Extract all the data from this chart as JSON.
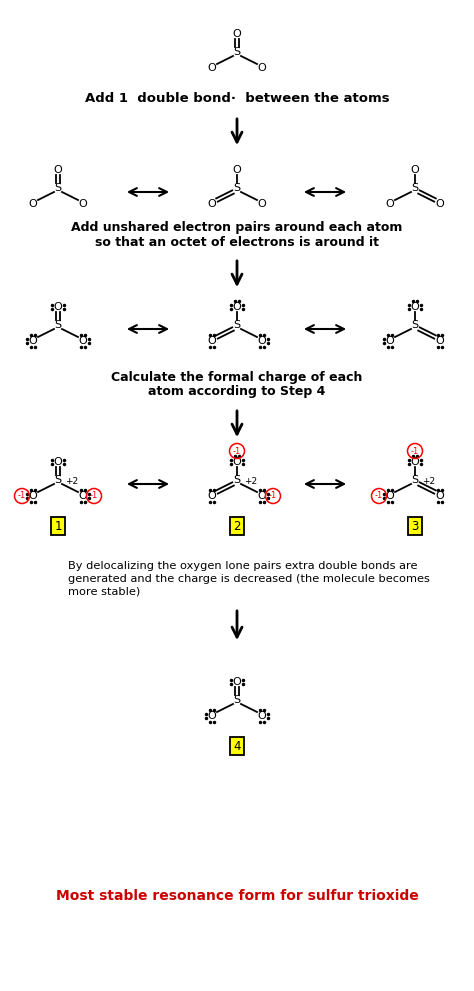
{
  "bg_color": "#ffffff",
  "step1_text": "Add 1  double bond·  between the atoms",
  "step2_line1": "Add unshared electron pairs around each atom",
  "step2_line2": "so that an octet of electrons is around it",
  "step3_line1": "Calculate the formal charge of each",
  "step3_line2": "atom according to Step 4",
  "step4_line1": "By delocalizing the oxygen lone pairs extra double bonds are",
  "step4_line2": "generated and the charge is decreased (the molecule becomes",
  "step4_line3": "more stable)",
  "final_text": "Most stable resonance form for sulfur trioxide",
  "red": "#cc0000"
}
